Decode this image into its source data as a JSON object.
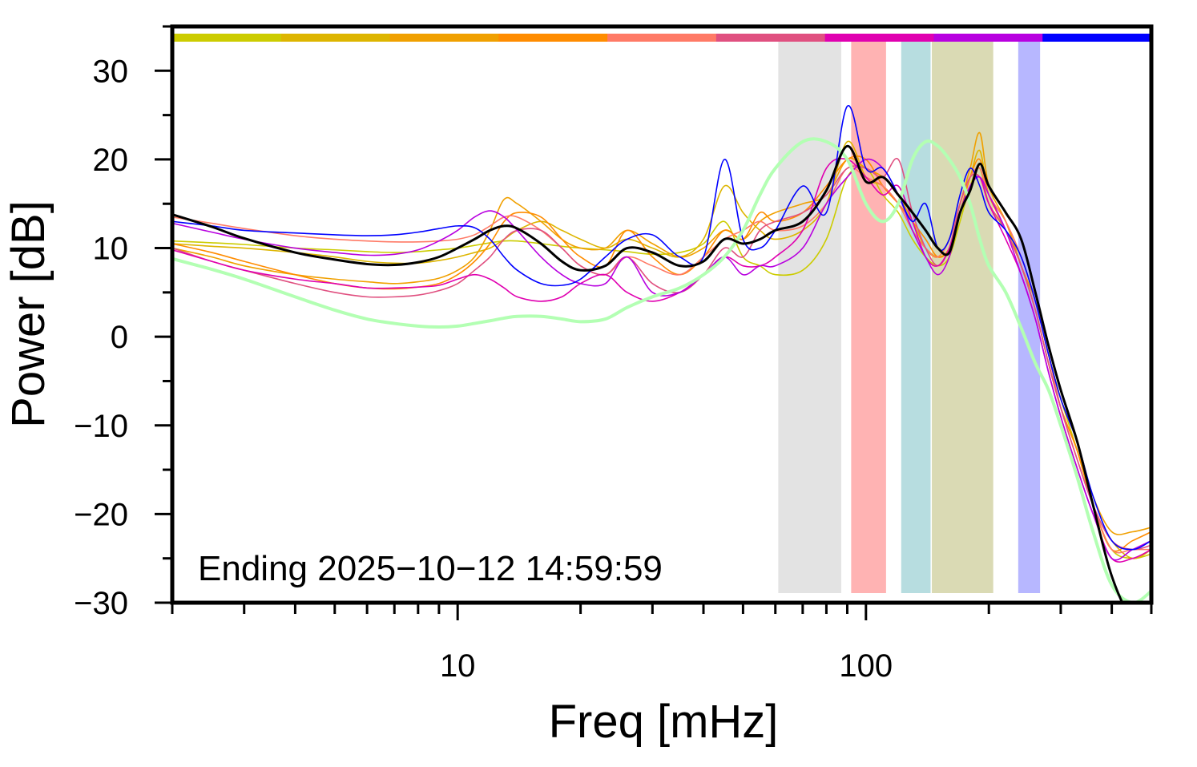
{
  "chart_data": {
    "type": "line",
    "xlabel": "Freq [mHz]",
    "ylabel": "Power [dB]",
    "xscale": "log",
    "xlim": [
      2,
      500
    ],
    "ylim": [
      -30,
      35
    ],
    "yticks": [
      -30,
      -20,
      -10,
      0,
      10,
      20,
      30
    ],
    "xtick_labels": [
      {
        "value": 10,
        "label": "10"
      },
      {
        "value": 100,
        "label": "100"
      }
    ],
    "grid": false,
    "annotation": "Ending 2025−10−12 14:59:59",
    "color_bar": [
      "#cccc00",
      "#ddb500",
      "#f0a000",
      "#ff8c00",
      "#ff7a66",
      "#e05080",
      "#e000b0",
      "#b800e0",
      "#0000ff"
    ],
    "bands": [
      {
        "from": 61,
        "to": 87,
        "color": "#e3e3e3"
      },
      {
        "from": 92,
        "to": 112,
        "color": "#ffb3b3"
      },
      {
        "from": 122,
        "to": 144,
        "color": "#b7dde0"
      },
      {
        "from": 145,
        "to": 205,
        "color": "#dadab4"
      },
      {
        "from": 236,
        "to": 267,
        "color": "#b7b7ff"
      }
    ],
    "x": [
      2,
      2.5,
      3,
      4,
      5,
      6,
      7,
      8,
      9,
      10,
      11,
      12,
      13,
      14,
      16,
      18,
      20,
      23,
      26,
      30,
      35,
      40,
      45,
      50,
      55,
      60,
      70,
      80,
      90,
      100,
      110,
      120,
      130,
      140,
      150,
      160,
      170,
      180,
      190,
      200,
      220,
      240,
      260,
      280,
      300,
      330,
      360,
      400,
      450,
      500
    ],
    "series": [
      {
        "color": "#cccc00",
        "width": 1.6,
        "values": [
          10.8,
          10.6,
          10.4,
          10,
          9.8,
          9.6,
          9.5,
          9.6,
          9.8,
          10,
          10.3,
          10.6,
          10.8,
          10.8,
          10.5,
          10.2,
          10,
          9.8,
          9.6,
          9.3,
          9.5,
          10.5,
          13,
          9,
          8,
          7,
          7.5,
          11,
          18,
          19,
          16,
          14,
          11,
          9,
          8,
          9,
          13,
          17,
          19,
          15,
          12,
          9,
          4,
          -2,
          -7,
          -13,
          -19,
          -24,
          -25,
          -24.5
        ]
      },
      {
        "color": "#ddb500",
        "width": 1.6,
        "values": [
          10.5,
          10.2,
          10,
          9.5,
          9,
          8.5,
          8.3,
          8.3,
          8.6,
          9,
          9.5,
          10,
          11,
          12,
          13,
          12,
          11,
          10,
          11,
          10,
          9,
          11,
          17,
          14,
          12,
          11,
          12,
          15,
          22,
          18,
          17,
          15,
          12,
          10,
          9,
          10,
          14,
          18,
          21,
          16,
          13,
          8,
          3,
          -3,
          -8,
          -13,
          -19,
          -23,
          -25,
          -24
        ]
      },
      {
        "color": "#f0a000",
        "width": 1.6,
        "values": [
          10,
          9,
          8,
          7,
          6.5,
          6.2,
          6,
          6.2,
          6.6,
          7.5,
          9,
          12,
          15.5,
          15,
          13,
          11,
          10,
          10,
          12,
          10.5,
          9,
          10,
          12,
          11,
          13,
          14,
          15,
          16,
          20,
          19,
          18,
          16,
          13,
          10,
          9,
          11,
          15,
          19,
          23,
          17,
          13,
          8,
          4,
          -2,
          -7,
          -12,
          -18,
          -22,
          -22,
          -21.5
        ]
      },
      {
        "color": "#ff8c00",
        "width": 1.6,
        "values": [
          10.5,
          9.5,
          8.5,
          7,
          6,
          5.5,
          5.4,
          5.6,
          6,
          7,
          8.5,
          10.5,
          13,
          14,
          13.5,
          11,
          9,
          8,
          12,
          9,
          7,
          9,
          12,
          11,
          14,
          13,
          14,
          17,
          20,
          20,
          17,
          15,
          13,
          11,
          9,
          10,
          14,
          18,
          20,
          16,
          12,
          8,
          3,
          -3,
          -8,
          -13,
          -19,
          -24,
          -23,
          -22
        ]
      },
      {
        "color": "#ff7a66",
        "width": 1.6,
        "values": [
          13.5,
          12.8,
          12.2,
          11.4,
          11,
          10.8,
          10.7,
          10.7,
          10.8,
          11,
          11.5,
          12.5,
          13.5,
          13.5,
          12,
          10,
          8,
          7,
          9,
          8,
          7,
          9,
          11,
          12,
          13,
          12,
          12.5,
          15,
          19,
          18,
          17,
          15,
          12,
          10,
          9,
          11,
          15,
          18,
          19,
          16,
          13,
          9,
          4,
          -2,
          -8,
          -14,
          -19,
          -24,
          -24,
          -24
        ]
      },
      {
        "color": "#e05080",
        "width": 1.6,
        "values": [
          10,
          8.5,
          7.5,
          6,
          5,
          4.5,
          4.5,
          4.7,
          5.2,
          6,
          7.5,
          9,
          11,
          12,
          12,
          10,
          8,
          7,
          9,
          6,
          5,
          7,
          10,
          9,
          12,
          13,
          14,
          16,
          19,
          19,
          18,
          20,
          14,
          10,
          8,
          10,
          15,
          18,
          18,
          15,
          12,
          8,
          3,
          -3,
          -8,
          -14,
          -19,
          -23,
          -24,
          -23.5
        ]
      },
      {
        "color": "#e000b0",
        "width": 1.6,
        "values": [
          9.8,
          8.5,
          7.5,
          6.5,
          6,
          5.5,
          5.5,
          5.6,
          5.8,
          6.5,
          7,
          6.5,
          5.5,
          4.5,
          4,
          4.5,
          6,
          7,
          5,
          4,
          5,
          7,
          9,
          8,
          8,
          9,
          12,
          19,
          20,
          18,
          16,
          17,
          13,
          9,
          8,
          10,
          14,
          17,
          18,
          15,
          11,
          7,
          2,
          -4,
          -9,
          -15,
          -20,
          -25,
          -25,
          -24
        ]
      },
      {
        "color": "#b800e0",
        "width": 1.6,
        "values": [
          12.8,
          11.8,
          11,
          10,
          9.5,
          9.2,
          9.3,
          9.8,
          10.8,
          12,
          13.5,
          14.2,
          13.5,
          12,
          9,
          7,
          6,
          6,
          9,
          5,
          5,
          7,
          9,
          7,
          8,
          8,
          10,
          15,
          18,
          20,
          19,
          16,
          12,
          9,
          7,
          9,
          14,
          17,
          18,
          16,
          12,
          7,
          2,
          -4,
          -9,
          -15,
          -20,
          -25,
          -24,
          -23
        ]
      },
      {
        "color": "#0000ff",
        "width": 1.6,
        "values": [
          13,
          12.5,
          12,
          11.7,
          11.5,
          11.4,
          11.5,
          11.8,
          12.2,
          12.5,
          12.3,
          11,
          9,
          7.5,
          6,
          5.8,
          6.5,
          9,
          11,
          11.5,
          9,
          9,
          20,
          11,
          10,
          12,
          17,
          14,
          26,
          19,
          19,
          16,
          13,
          15,
          10,
          11,
          16,
          19,
          17,
          14,
          12,
          9,
          4,
          -2,
          -7,
          -12,
          -18,
          -23,
          -24,
          -23
        ]
      },
      {
        "color": "#b3ffb3",
        "width": 4,
        "values": [
          8.8,
          7.6,
          6.5,
          4.5,
          3,
          2,
          1.5,
          1.2,
          1.1,
          1.2,
          1.5,
          1.8,
          2.1,
          2.3,
          2.3,
          2,
          1.7,
          2,
          3.3,
          4.5,
          5.5,
          7,
          9,
          12,
          16,
          19,
          22,
          22,
          20,
          15,
          13,
          15,
          20,
          22,
          21.5,
          20,
          18,
          15,
          11,
          8,
          5,
          1,
          -3,
          -6,
          -10,
          -16,
          -22,
          -28,
          -30,
          -28.7
        ]
      },
      {
        "color": "#000000",
        "width": 3,
        "values": [
          13.8,
          12.4,
          11.1,
          9.5,
          8.7,
          8.2,
          8.1,
          8.4,
          9,
          10,
          11,
          12,
          12.5,
          12.2,
          10.5,
          8.5,
          7.5,
          8,
          10,
          9.5,
          8,
          8.5,
          11,
          10.5,
          11,
          12,
          13,
          16.5,
          21.5,
          17.5,
          18,
          16,
          14,
          12,
          10,
          9.5,
          14,
          16.5,
          19.5,
          17,
          14,
          11,
          5,
          -1,
          -6,
          -12,
          -19,
          -27,
          -32,
          -33
        ]
      }
    ]
  }
}
